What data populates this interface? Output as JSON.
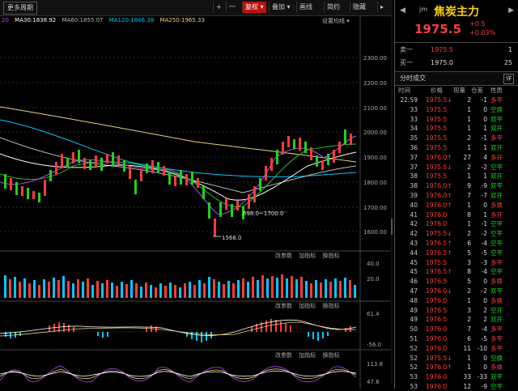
{
  "toolbar": {
    "period_label": "更多周期",
    "plus_label": "+",
    "minus_label": "一",
    "adjust_label": "复权",
    "overlay_label": "叠加",
    "draw_label": "画线",
    "simple_label": "简约",
    "hide_label": "隐藏",
    "more_icon": "chevron-right-icon"
  },
  "ma_legend": [
    {
      "text": "20",
      "color": "#b050ff"
    },
    {
      "text": "MA30:1838.92",
      "color": "#ffffff"
    },
    {
      "text": "MA60:1855.07",
      "color": "#bbbbbb"
    },
    {
      "text": "MA120:1846.38",
      "color": "#00c8ff"
    },
    {
      "text": "MA250:1965.33",
      "color": "#e8d27a"
    }
  ],
  "settings_label": "设置均线",
  "price_axis": [
    "2300.00",
    "2200.00",
    "2100.00",
    "2000.00",
    "1900.00",
    "1800.00",
    "1700.00",
    "1600.00"
  ],
  "annotations": {
    "range_label": "698.0~1700.0",
    "low_label": "1568.0"
  },
  "sub_header": {
    "params": "改参数",
    "add": "加指标",
    "switch": "换指标"
  },
  "volume_axis": [
    "40.0",
    "20.0"
  ],
  "macd_axis": [
    "61.4",
    "-56.0"
  ],
  "kdj_axis": [
    "113.8",
    "47.6"
  ],
  "colors": {
    "up": "#ff3b3b",
    "down": "#1fd11f",
    "accent": "#ffd400",
    "active": "#c01010"
  },
  "quote": {
    "code": "jm",
    "name": "焦炭主力",
    "price": "1975.5",
    "change": "+0.5",
    "change_pct": "+0.03%",
    "prev_icon": "chevron-left-icon",
    "next_icon": "chevron-right-icon"
  },
  "order_book": [
    {
      "label": "卖一",
      "price": "1975.5",
      "volume": "1"
    },
    {
      "label": "买一",
      "price": "1975.0",
      "volume": "25"
    }
  ],
  "time_sales": {
    "title": "分时成交",
    "btn": "详",
    "columns": [
      "时间",
      "价格",
      "现量",
      "仓差",
      "性质"
    ],
    "rows": [
      {
        "time": "22:59",
        "price": "1975.5↓",
        "vol": "2",
        "oi": "-1",
        "nature": "多平",
        "c": "up"
      },
      {
        "time": "33",
        "price": "1975.5",
        "vol": "1",
        "oi": "0",
        "nature": "空换",
        "c": "down"
      },
      {
        "time": "33",
        "price": "1975.5",
        "vol": "1",
        "oi": "0",
        "nature": "双平",
        "c": "down"
      },
      {
        "time": "34",
        "price": "1975.5",
        "vol": "1",
        "oi": "1",
        "nature": "双开",
        "c": "down"
      },
      {
        "time": "35",
        "price": "1975.5",
        "vol": "2",
        "oi": "-1",
        "nature": "多平",
        "c": "up"
      },
      {
        "time": "36",
        "price": "1975.5",
        "vol": "1",
        "oi": "1",
        "nature": "双开",
        "c": "down"
      },
      {
        "time": "37",
        "price": "1976.0↑",
        "vol": "27",
        "oi": "4",
        "nature": "多开",
        "c": "up"
      },
      {
        "time": "37",
        "price": "1975.5↓",
        "vol": "2",
        "oi": "-2",
        "nature": "空平",
        "c": "down"
      },
      {
        "time": "38",
        "price": "1975.5",
        "vol": "1",
        "oi": "1",
        "nature": "双开",
        "c": "down"
      },
      {
        "time": "38",
        "price": "1976.0↑",
        "vol": "9",
        "oi": "-9",
        "nature": "双平",
        "c": "down"
      },
      {
        "time": "39",
        "price": "1976.0↑",
        "vol": "7",
        "oi": "-7",
        "nature": "双开",
        "c": "down"
      },
      {
        "time": "40",
        "price": "1976.0↑",
        "vol": "1",
        "oi": "0",
        "nature": "多换",
        "c": "up"
      },
      {
        "time": "41",
        "price": "1976.0",
        "vol": "8",
        "oi": "1",
        "nature": "多开",
        "c": "up"
      },
      {
        "time": "42",
        "price": "1976.0",
        "vol": "1",
        "oi": "-1",
        "nature": "空平",
        "c": "down"
      },
      {
        "time": "42",
        "price": "1975.5↓",
        "vol": "2",
        "oi": "-2",
        "nature": "空平",
        "c": "down"
      },
      {
        "time": "43",
        "price": "1976.5↑",
        "vol": "6",
        "oi": "-4",
        "nature": "空平",
        "c": "down"
      },
      {
        "time": "44",
        "price": "1976.5↑",
        "vol": "5",
        "oi": "-5",
        "nature": "空平",
        "c": "down"
      },
      {
        "time": "45",
        "price": "1975.5",
        "vol": "3",
        "oi": "-3",
        "nature": "多平",
        "c": "up"
      },
      {
        "time": "45",
        "price": "1976.5↑",
        "vol": "8",
        "oi": "-4",
        "nature": "空平",
        "c": "down"
      },
      {
        "time": "46",
        "price": "1976.5",
        "vol": "5",
        "oi": "0",
        "nature": "多换",
        "c": "up"
      },
      {
        "time": "47",
        "price": "1976.0↓",
        "vol": "2",
        "oi": "-2",
        "nature": "双平",
        "c": "down"
      },
      {
        "time": "48",
        "price": "1976.0",
        "vol": "1",
        "oi": "0",
        "nature": "多换",
        "c": "up"
      },
      {
        "time": "49",
        "price": "1976.5",
        "vol": "3",
        "oi": "2",
        "nature": "空开",
        "c": "down"
      },
      {
        "time": "49",
        "price": "1976.5",
        "vol": "2",
        "oi": "2",
        "nature": "双开",
        "c": "down"
      },
      {
        "time": "50",
        "price": "1976.0",
        "vol": "7",
        "oi": "-4",
        "nature": "多平",
        "c": "up"
      },
      {
        "time": "51",
        "price": "1976.0",
        "vol": "6",
        "oi": "-5",
        "nature": "多平",
        "c": "up"
      },
      {
        "time": "52",
        "price": "1976.0",
        "vol": "11",
        "oi": "-10",
        "nature": "多平",
        "c": "up"
      },
      {
        "time": "52",
        "price": "1975.5↓",
        "vol": "1",
        "oi": "0",
        "nature": "空换",
        "c": "down"
      },
      {
        "time": "52",
        "price": "1976.0↑",
        "vol": "1",
        "oi": "0",
        "nature": "多换",
        "c": "up"
      },
      {
        "time": "53",
        "price": "1976.0",
        "vol": "33",
        "oi": "-33",
        "nature": "双平",
        "c": "down"
      },
      {
        "time": "53",
        "price": "1976.0",
        "vol": "12",
        "oi": "-9",
        "nature": "空平",
        "c": "down"
      }
    ]
  }
}
